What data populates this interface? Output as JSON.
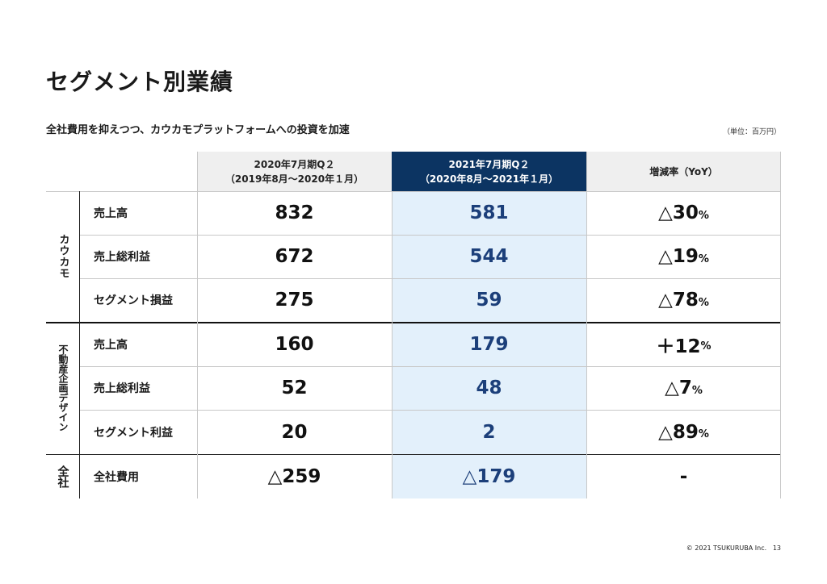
{
  "page": {
    "title": "セグメント別業績",
    "subtitle": "全社費用を抑えつつ、カウカモプラットフォームへの投資を加速",
    "unit": "（単位：百万円）",
    "copyright": "© 2021 TSUKURUBA Inc.",
    "page_number": "13"
  },
  "table": {
    "headers": {
      "prev_line1": "2020年7月期Q２",
      "prev_line2": "（2019年8月〜2020年１月）",
      "curr_line1": "2021年7月期Q２",
      "curr_line2": "（2020年8月〜2021年１月）",
      "yoy": "増減率（YoY）"
    },
    "groups": [
      {
        "label": "カウカモ"
      },
      {
        "label": "不動産企画デザイン"
      },
      {
        "label": "全社"
      }
    ],
    "rows": [
      {
        "label": "売上高",
        "prev": "832",
        "curr": "581",
        "yoy": "△30",
        "pct": "%"
      },
      {
        "label": "売上総利益",
        "prev": "672",
        "curr": "544",
        "yoy": "△19",
        "pct": "%"
      },
      {
        "label": "セグメント損益",
        "prev": "275",
        "curr": "59",
        "yoy": "△78",
        "pct": "%"
      },
      {
        "label": "売上高",
        "prev": "160",
        "curr": "179",
        "yoy": "＋12",
        "pct": "%"
      },
      {
        "label": "売上総利益",
        "prev": "52",
        "curr": "48",
        "yoy": "△7",
        "pct": "%"
      },
      {
        "label": "セグメント利益",
        "prev": "20",
        "curr": "2",
        "yoy": "△89",
        "pct": "%"
      },
      {
        "label": "全社費用",
        "prev": "△259",
        "curr": "△179",
        "yoy": "-",
        "pct": ""
      }
    ]
  },
  "colors": {
    "header_navy": "#0c3462",
    "header_gray": "#efefef",
    "highlight_column": "#e3f0fb",
    "current_value_text": "#1c3f7a"
  }
}
